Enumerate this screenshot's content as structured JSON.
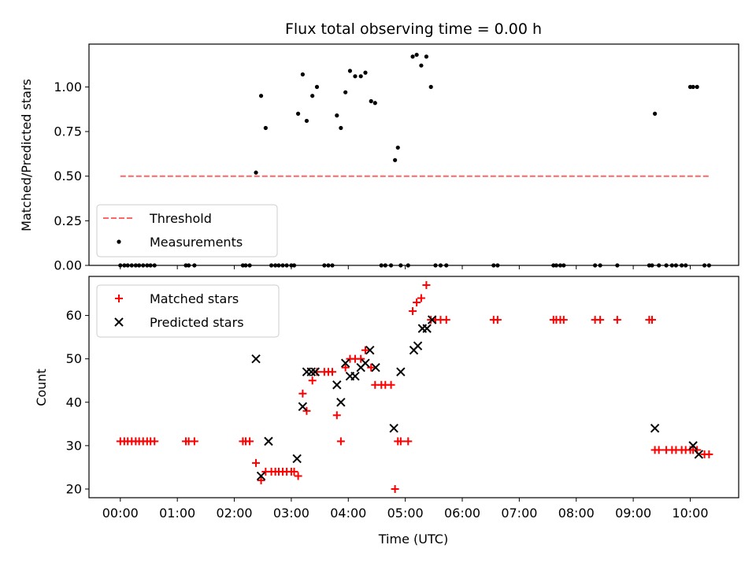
{
  "chart_data": [
    {
      "type": "scatter",
      "title": "Flux total observing time = 0.00 h",
      "xlabel": "",
      "ylabel": "Matched/Predicted stars",
      "xlim": [
        -0.55,
        10.85
      ],
      "ylim": [
        0.0,
        1.24
      ],
      "yticks": [
        0.0,
        0.25,
        0.5,
        0.75,
        1.0
      ],
      "ytick_labels": [
        "0.00",
        "0.25",
        "0.50",
        "0.75",
        "1.00"
      ],
      "legend": {
        "position": "lower-left",
        "entries": [
          "Threshold",
          "Measurements"
        ]
      },
      "threshold": {
        "name": "Threshold",
        "y": 0.5,
        "x_range": [
          0.0,
          10.33
        ],
        "color": "#ff6666"
      },
      "series": [
        {
          "name": "Measurements",
          "color": "#000000",
          "x": [
            0.0,
            0.07,
            0.13,
            0.2,
            0.27,
            0.33,
            0.4,
            0.47,
            0.53,
            0.6,
            1.15,
            1.2,
            1.3,
            2.15,
            2.2,
            2.27,
            2.38,
            2.47,
            2.55,
            2.65,
            2.72,
            2.78,
            2.85,
            2.92,
            3.0,
            3.05,
            3.12,
            3.2,
            3.27,
            3.37,
            3.45,
            3.58,
            3.65,
            3.72,
            3.8,
            3.87,
            3.95,
            4.03,
            4.12,
            4.22,
            4.3,
            4.4,
            4.47,
            4.58,
            4.65,
            4.75,
            4.82,
            4.87,
            4.92,
            5.05,
            5.13,
            5.2,
            5.28,
            5.37,
            5.45,
            5.53,
            5.62,
            5.72,
            6.55,
            6.62,
            7.6,
            7.65,
            7.72,
            7.78,
            8.33,
            8.42,
            8.72,
            9.28,
            9.33,
            9.38,
            9.45,
            9.58,
            9.68,
            9.75,
            9.85,
            9.92,
            10.0,
            10.05,
            10.12,
            10.25,
            10.33
          ],
          "y": [
            0.0,
            0.0,
            0.0,
            0.0,
            0.0,
            0.0,
            0.0,
            0.0,
            0.0,
            0.0,
            0.0,
            0.0,
            0.0,
            0.0,
            0.0,
            0.0,
            0.52,
            0.95,
            0.77,
            0.0,
            0.0,
            0.0,
            0.0,
            0.0,
            0.0,
            0.0,
            0.85,
            1.07,
            0.81,
            0.95,
            1.0,
            0.0,
            0.0,
            0.0,
            0.84,
            0.77,
            0.97,
            1.09,
            1.06,
            1.06,
            1.08,
            0.92,
            0.91,
            0.0,
            0.0,
            0.0,
            0.59,
            0.66,
            0.0,
            0.0,
            1.17,
            1.18,
            1.12,
            1.17,
            1.0,
            0.0,
            0.0,
            0.0,
            0.0,
            0.0,
            0.0,
            0.0,
            0.0,
            0.0,
            0.0,
            0.0,
            0.0,
            0.0,
            0.0,
            0.85,
            0.0,
            0.0,
            0.0,
            0.0,
            0.0,
            0.0,
            1.0,
            1.0,
            1.0,
            0.0,
            0.0
          ]
        }
      ]
    },
    {
      "type": "scatter",
      "title": "",
      "xlabel": "Time (UTC)",
      "ylabel": "Count",
      "xlim": [
        -0.55,
        10.85
      ],
      "ylim": [
        18,
        69
      ],
      "yticks": [
        20,
        30,
        40,
        50,
        60
      ],
      "ytick_labels": [
        "20",
        "30",
        "40",
        "50",
        "60"
      ],
      "xticks": [
        0,
        1,
        2,
        3,
        4,
        5,
        6,
        7,
        8,
        9,
        10
      ],
      "xtick_labels": [
        "00:00",
        "01:00",
        "02:00",
        "03:00",
        "04:00",
        "05:00",
        "06:00",
        "07:00",
        "08:00",
        "09:00",
        "10:00"
      ],
      "legend": {
        "position": "upper-left",
        "entries": [
          "Matched stars",
          "Predicted stars"
        ]
      },
      "series": [
        {
          "name": "Matched stars",
          "marker": "plus",
          "color": "#ff0000",
          "x": [
            0.0,
            0.07,
            0.13,
            0.2,
            0.27,
            0.33,
            0.4,
            0.47,
            0.53,
            0.6,
            1.15,
            1.2,
            1.3,
            2.15,
            2.2,
            2.27,
            2.38,
            2.47,
            2.55,
            2.65,
            2.72,
            2.78,
            2.85,
            2.92,
            3.0,
            3.05,
            3.12,
            3.2,
            3.27,
            3.37,
            3.45,
            3.58,
            3.65,
            3.72,
            3.8,
            3.87,
            3.95,
            4.03,
            4.12,
            4.22,
            4.3,
            4.4,
            4.47,
            4.58,
            4.65,
            4.75,
            4.82,
            4.87,
            4.92,
            5.05,
            5.13,
            5.2,
            5.28,
            5.37,
            5.45,
            5.53,
            5.62,
            5.72,
            6.55,
            6.62,
            7.6,
            7.65,
            7.72,
            7.78,
            8.33,
            8.42,
            8.72,
            9.28,
            9.33,
            9.38,
            9.45,
            9.58,
            9.68,
            9.75,
            9.85,
            9.92,
            10.0,
            10.05,
            10.12,
            10.25,
            10.33
          ],
          "y": [
            31,
            31,
            31,
            31,
            31,
            31,
            31,
            31,
            31,
            31,
            31,
            31,
            31,
            31,
            31,
            31,
            26,
            22,
            24,
            24,
            24,
            24,
            24,
            24,
            24,
            24,
            23,
            42,
            38,
            45,
            47,
            47,
            47,
            47,
            37,
            31,
            48,
            50,
            50,
            50,
            52,
            48,
            44,
            44,
            44,
            44,
            20,
            31,
            31,
            31,
            61,
            63,
            64,
            67,
            59,
            59,
            59,
            59,
            59,
            59,
            59,
            59,
            59,
            59,
            59,
            59,
            59,
            59,
            59,
            29,
            29,
            29,
            29,
            29,
            29,
            29,
            29,
            29,
            29,
            28,
            28
          ]
        },
        {
          "name": "Predicted stars",
          "marker": "x",
          "color": "#000000",
          "x": [
            2.38,
            2.47,
            2.6,
            3.1,
            3.2,
            3.27,
            3.35,
            3.42,
            3.8,
            3.87,
            3.95,
            4.03,
            4.12,
            4.22,
            4.3,
            4.38,
            4.48,
            4.8,
            4.92,
            5.15,
            5.22,
            5.3,
            5.38,
            5.47,
            9.38,
            10.05,
            10.15
          ],
          "y": [
            50,
            23,
            31,
            27,
            39,
            47,
            47,
            47,
            44,
            40,
            49,
            46,
            46,
            48,
            49,
            52,
            48,
            34,
            47,
            52,
            53,
            57,
            57,
            59,
            34,
            30,
            28
          ]
        }
      ]
    }
  ]
}
